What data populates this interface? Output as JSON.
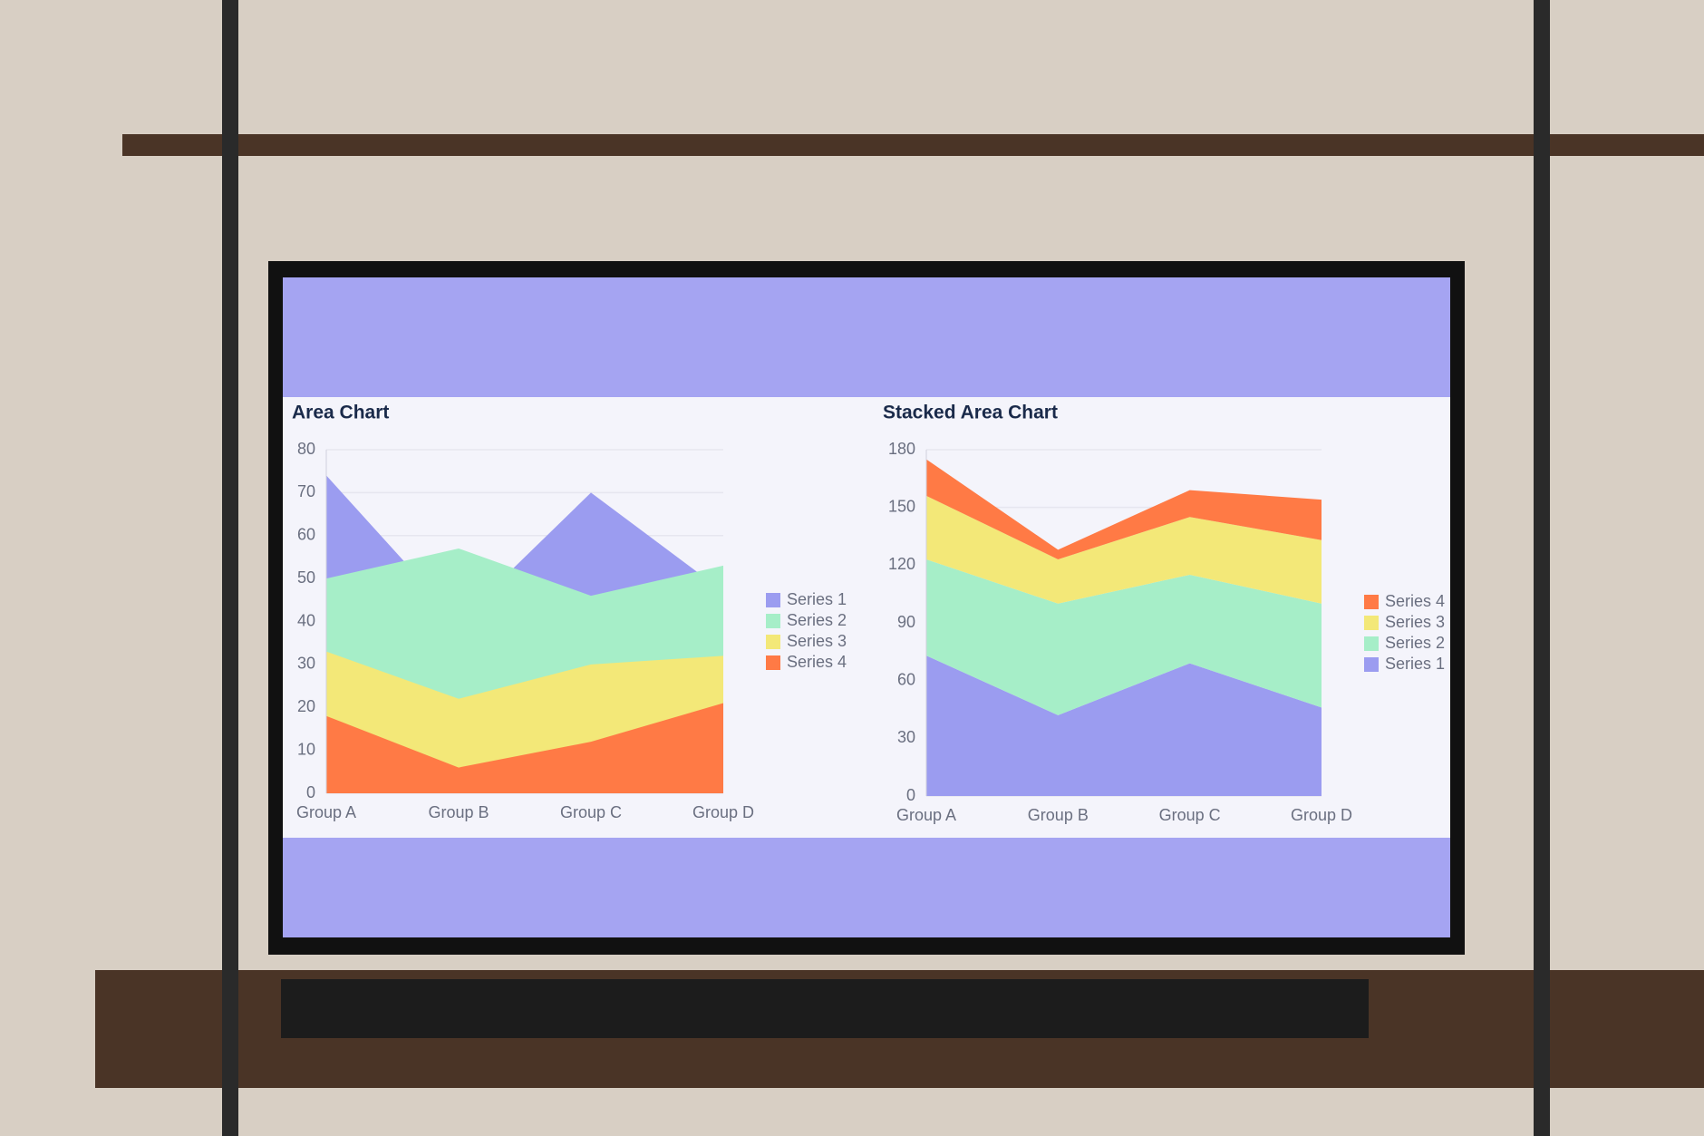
{
  "chart_data": [
    {
      "type": "area",
      "title": "Area Chart",
      "categories": [
        "Group A",
        "Group B",
        "Group C",
        "Group D"
      ],
      "series": [
        {
          "name": "Series 1",
          "color": "#9b9cf0",
          "values": [
            74,
            40,
            70,
            47
          ]
        },
        {
          "name": "Series 2",
          "color": "#a6eec8",
          "values": [
            50,
            57,
            46,
            53
          ]
        },
        {
          "name": "Series 3",
          "color": "#f3e878",
          "values": [
            33,
            22,
            30,
            32
          ]
        },
        {
          "name": "Series 4",
          "color": "#ff7a45",
          "values": [
            18,
            6,
            12,
            21
          ]
        }
      ],
      "ylim": [
        0,
        80
      ],
      "yticks": [
        0,
        10,
        20,
        30,
        40,
        50,
        60,
        70,
        80
      ],
      "grid": true,
      "legend": "right"
    },
    {
      "type": "stacked_area",
      "title": "Stacked Area Chart",
      "categories": [
        "Group A",
        "Group B",
        "Group C",
        "Group D"
      ],
      "series": [
        {
          "name": "Series 1",
          "color": "#9b9cf0",
          "values": [
            73,
            42,
            69,
            46
          ]
        },
        {
          "name": "Series 2",
          "color": "#a6eec8",
          "values": [
            50,
            58,
            46,
            54
          ]
        },
        {
          "name": "Series 3",
          "color": "#f3e878",
          "values": [
            33,
            23,
            30,
            33
          ]
        },
        {
          "name": "Series 4",
          "color": "#ff7a45",
          "values": [
            19,
            5,
            14,
            21
          ]
        }
      ],
      "ylim": [
        0,
        180
      ],
      "yticks": [
        0,
        30,
        60,
        90,
        120,
        150,
        180
      ],
      "grid": true,
      "legend": "right",
      "legend_reversed": true
    }
  ]
}
